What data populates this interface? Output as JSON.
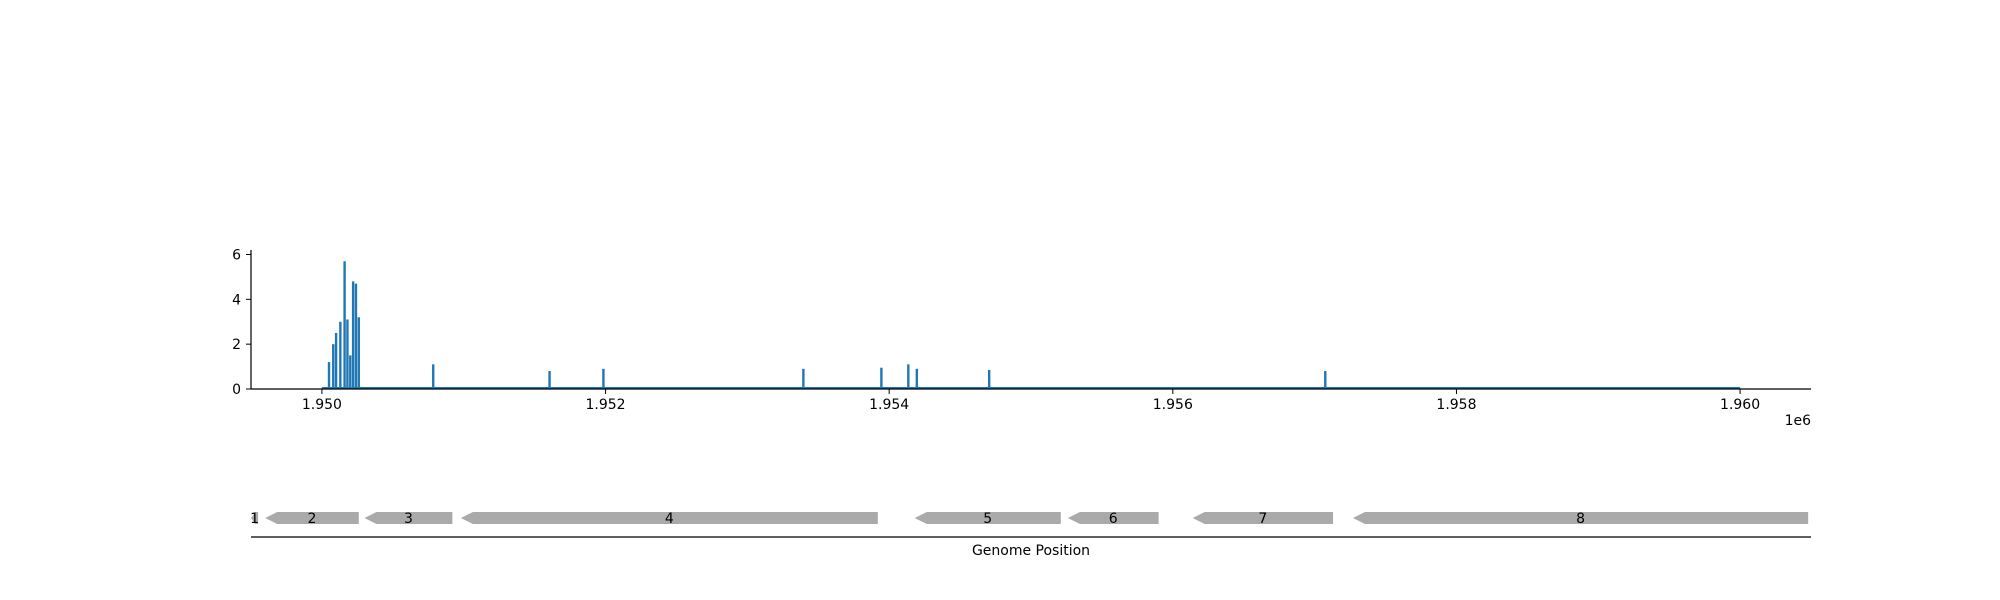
{
  "chart_data": [
    {
      "type": "bar",
      "title": "",
      "xlabel": "",
      "ylabel": "",
      "x_offset_label": "1e6",
      "xlim": [
        1.9495,
        1.9605
      ],
      "ylim": [
        0,
        6.2
      ],
      "xticks": [
        1.95,
        1.952,
        1.954,
        1.956,
        1.958,
        1.96
      ],
      "xtick_labels": [
        "1.950",
        "1.952",
        "1.954",
        "1.956",
        "1.958",
        "1.960"
      ],
      "yticks": [
        0,
        2,
        4,
        6
      ],
      "ytick_labels": [
        "0",
        "2",
        "4",
        "6"
      ],
      "grid": false,
      "color": "#1f77b4",
      "baseline_range": [
        1.95,
        1.96
      ],
      "x": [
        1.95005,
        1.95008,
        1.9501,
        1.95013,
        1.95016,
        1.95018,
        1.9502,
        1.95022,
        1.95024,
        1.95026,
        1.950785,
        1.951605,
        1.951985,
        1.953395,
        1.953945,
        1.954135,
        1.954195,
        1.954705,
        1.957075
      ],
      "values": [
        1.2,
        2.0,
        2.5,
        3.0,
        5.7,
        3.1,
        1.5,
        4.8,
        4.7,
        3.2,
        1.1,
        0.8,
        0.9,
        0.9,
        0.95,
        1.1,
        0.9,
        0.85,
        0.8
      ]
    },
    {
      "type": "gene-track",
      "xlabel": "Genome Position",
      "xlim": [
        1.9495,
        1.9605
      ],
      "color": "#aaaaaa",
      "genes": [
        {
          "label": "1",
          "start": 1.9495,
          "end": 1.94955,
          "strand": "-"
        },
        {
          "label": "2",
          "start": 1.9496,
          "end": 1.95026,
          "strand": "-"
        },
        {
          "label": "3",
          "start": 1.9503,
          "end": 1.95092,
          "strand": "-"
        },
        {
          "label": "4",
          "start": 1.95098,
          "end": 1.95392,
          "strand": "-"
        },
        {
          "label": "5",
          "start": 1.95418,
          "end": 1.95521,
          "strand": "-"
        },
        {
          "label": "6",
          "start": 1.95526,
          "end": 1.9559,
          "strand": "-"
        },
        {
          "label": "7",
          "start": 1.95614,
          "end": 1.95713,
          "strand": "-"
        },
        {
          "label": "8",
          "start": 1.95727,
          "end": 1.96048,
          "strand": "-"
        }
      ]
    }
  ]
}
